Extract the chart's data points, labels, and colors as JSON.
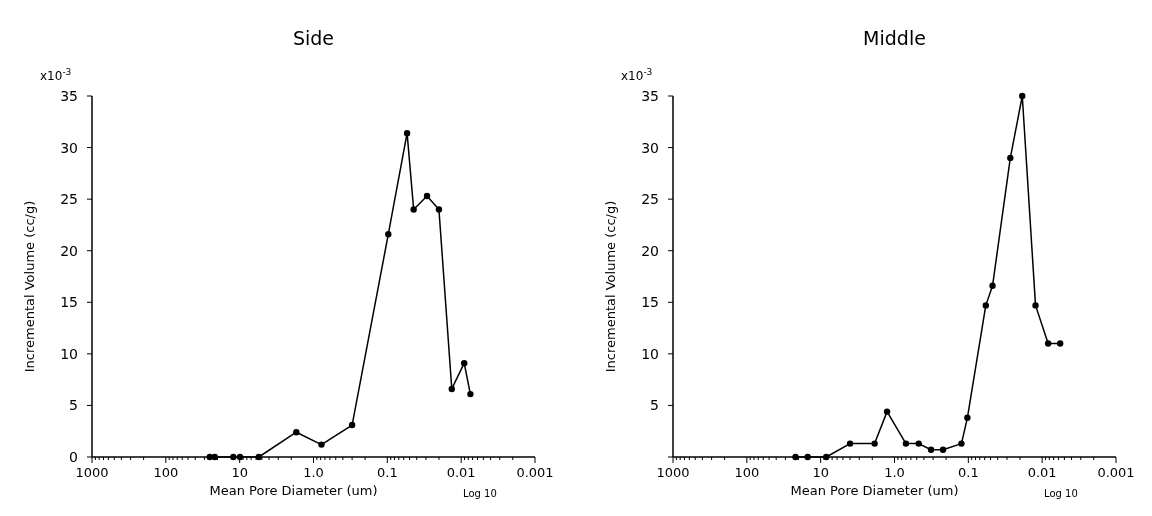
{
  "chart_data": [
    {
      "type": "line",
      "title": "Side",
      "xlabel": "Mean Pore Diameter (um)",
      "ylabel": "Incremental Volume (cc/g)",
      "annotations": [
        "x10$^{-3}$",
        "Log 10"
      ],
      "log": "x",
      "xlim": [
        1000,
        0.001
      ],
      "ylim": [
        0,
        35
      ],
      "grid": false,
      "marker": "circle",
      "line_style": "solid",
      "xticks": [
        {
          "value": 1000,
          "label": "1000"
        },
        {
          "value": 100,
          "label": "100"
        },
        {
          "value": 10,
          "label": "10"
        },
        {
          "value": 1,
          "label": "1.0"
        },
        {
          "value": 0.1,
          "label": "0.1"
        },
        {
          "value": 0.01,
          "label": "0.01"
        },
        {
          "value": 0.001,
          "label": "0.001"
        },
        {
          "value": 900,
          "label": null
        },
        {
          "value": 800,
          "label": null
        },
        {
          "value": 700,
          "label": null
        },
        {
          "value": 600,
          "label": null
        },
        {
          "value": 500,
          "label": null
        },
        {
          "value": 400,
          "label": null
        },
        {
          "value": 300,
          "label": null
        },
        {
          "value": 200,
          "label": null
        },
        {
          "value": 90,
          "label": null
        },
        {
          "value": 80,
          "label": null
        },
        {
          "value": 70,
          "label": null
        },
        {
          "value": 60,
          "label": null
        },
        {
          "value": 50,
          "label": null
        },
        {
          "value": 40,
          "label": null
        },
        {
          "value": 30,
          "label": null
        },
        {
          "value": 20,
          "label": null
        },
        {
          "value": 9,
          "label": null
        },
        {
          "value": 8,
          "label": null
        },
        {
          "value": 7,
          "label": null
        },
        {
          "value": 6,
          "label": null
        },
        {
          "value": 5,
          "label": null
        },
        {
          "value": 4,
          "label": null
        },
        {
          "value": 3,
          "label": null
        },
        {
          "value": 2,
          "label": null
        },
        {
          "value": 0.9,
          "label": null
        },
        {
          "value": 0.8,
          "label": null
        },
        {
          "value": 0.7,
          "label": null
        },
        {
          "value": 0.6,
          "label": null
        },
        {
          "value": 0.5,
          "label": null
        },
        {
          "value": 0.4,
          "label": null
        },
        {
          "value": 0.3,
          "label": null
        },
        {
          "value": 0.2,
          "label": null
        },
        {
          "value": 0.09,
          "label": null
        },
        {
          "value": 0.08,
          "label": null
        },
        {
          "value": 0.07,
          "label": null
        },
        {
          "value": 0.06,
          "label": null
        },
        {
          "value": 0.05,
          "label": null
        },
        {
          "value": 0.04,
          "label": null
        },
        {
          "value": 0.03,
          "label": null
        },
        {
          "value": 0.02,
          "label": null
        },
        {
          "value": 0.009,
          "label": null
        },
        {
          "value": 0.008,
          "label": null
        },
        {
          "value": 0.007,
          "label": null
        },
        {
          "value": 0.006,
          "label": null
        },
        {
          "value": 0.005,
          "label": null
        },
        {
          "value": 0.004,
          "label": null
        },
        {
          "value": 0.003,
          "label": null
        },
        {
          "value": 0.002,
          "label": null
        }
      ],
      "yticks": [
        0,
        5,
        10,
        15,
        20,
        25,
        30,
        35
      ],
      "x": [
        25.4,
        21.7,
        12.2,
        9.9,
        5.5,
        1.71,
        0.78,
        0.3,
        0.097,
        0.054,
        0.044,
        0.029,
        0.02,
        0.0134,
        0.0091,
        0.0075
      ],
      "series": [
        {
          "color": "#000000",
          "values": [
            0,
            0,
            0,
            0,
            0,
            2.4,
            1.2,
            3.1,
            21.6,
            31.4,
            24.0,
            25.3,
            24.0,
            6.6,
            9.1,
            6.1
          ]
        }
      ]
    },
    {
      "type": "line",
      "title": "Middle",
      "xlabel": "Mean Pore Diameter (um)",
      "ylabel": "Incremental Volume (cc/g)",
      "annotations": [
        "x10$^{-3}$",
        "Log 10"
      ],
      "log": "x",
      "xlim": [
        1000,
        0.001
      ],
      "ylim": [
        0,
        35
      ],
      "grid": false,
      "marker": "circle",
      "line_style": "solid",
      "xticks": [
        {
          "value": 1000,
          "label": "1000"
        },
        {
          "value": 100,
          "label": "100"
        },
        {
          "value": 10,
          "label": "10"
        },
        {
          "value": 1,
          "label": "1.0"
        },
        {
          "value": 0.1,
          "label": "0.1"
        },
        {
          "value": 0.01,
          "label": "0.01"
        },
        {
          "value": 0.001,
          "label": "0.001"
        },
        {
          "value": 900,
          "label": null
        },
        {
          "value": 800,
          "label": null
        },
        {
          "value": 700,
          "label": null
        },
        {
          "value": 600,
          "label": null
        },
        {
          "value": 500,
          "label": null
        },
        {
          "value": 400,
          "label": null
        },
        {
          "value": 300,
          "label": null
        },
        {
          "value": 200,
          "label": null
        },
        {
          "value": 90,
          "label": null
        },
        {
          "value": 80,
          "label": null
        },
        {
          "value": 70,
          "label": null
        },
        {
          "value": 60,
          "label": null
        },
        {
          "value": 50,
          "label": null
        },
        {
          "value": 40,
          "label": null
        },
        {
          "value": 30,
          "label": null
        },
        {
          "value": 20,
          "label": null
        },
        {
          "value": 9,
          "label": null
        },
        {
          "value": 8,
          "label": null
        },
        {
          "value": 7,
          "label": null
        },
        {
          "value": 6,
          "label": null
        },
        {
          "value": 5,
          "label": null
        },
        {
          "value": 4,
          "label": null
        },
        {
          "value": 3,
          "label": null
        },
        {
          "value": 2,
          "label": null
        },
        {
          "value": 0.9,
          "label": null
        },
        {
          "value": 0.8,
          "label": null
        },
        {
          "value": 0.7,
          "label": null
        },
        {
          "value": 0.6,
          "label": null
        },
        {
          "value": 0.5,
          "label": null
        },
        {
          "value": 0.4,
          "label": null
        },
        {
          "value": 0.3,
          "label": null
        },
        {
          "value": 0.2,
          "label": null
        },
        {
          "value": 0.09,
          "label": null
        },
        {
          "value": 0.08,
          "label": null
        },
        {
          "value": 0.07,
          "label": null
        },
        {
          "value": 0.06,
          "label": null
        },
        {
          "value": 0.05,
          "label": null
        },
        {
          "value": 0.04,
          "label": null
        },
        {
          "value": 0.03,
          "label": null
        },
        {
          "value": 0.02,
          "label": null
        },
        {
          "value": 0.009,
          "label": null
        },
        {
          "value": 0.008,
          "label": null
        },
        {
          "value": 0.007,
          "label": null
        },
        {
          "value": 0.006,
          "label": null
        },
        {
          "value": 0.005,
          "label": null
        },
        {
          "value": 0.004,
          "label": null
        },
        {
          "value": 0.003,
          "label": null
        },
        {
          "value": 0.002,
          "label": null
        }
      ],
      "yticks": [
        {
          "value": 0,
          "label": null
        },
        5,
        10,
        15,
        20,
        25,
        30,
        35
      ],
      "x": [
        21.9,
        15.0,
        8.4,
        4.0,
        1.86,
        1.26,
        0.7,
        0.47,
        0.32,
        0.22,
        0.124,
        0.103,
        0.058,
        0.047,
        0.027,
        0.0186,
        0.0123,
        0.0083,
        0.0057
      ],
      "series": [
        {
          "color": "#000000",
          "values": [
            0,
            0,
            0,
            1.3,
            1.3,
            4.4,
            1.3,
            1.3,
            0.7,
            0.7,
            1.3,
            3.8,
            14.7,
            16.6,
            29.0,
            35.0,
            14.7,
            11.0,
            11.0
          ]
        }
      ]
    }
  ]
}
